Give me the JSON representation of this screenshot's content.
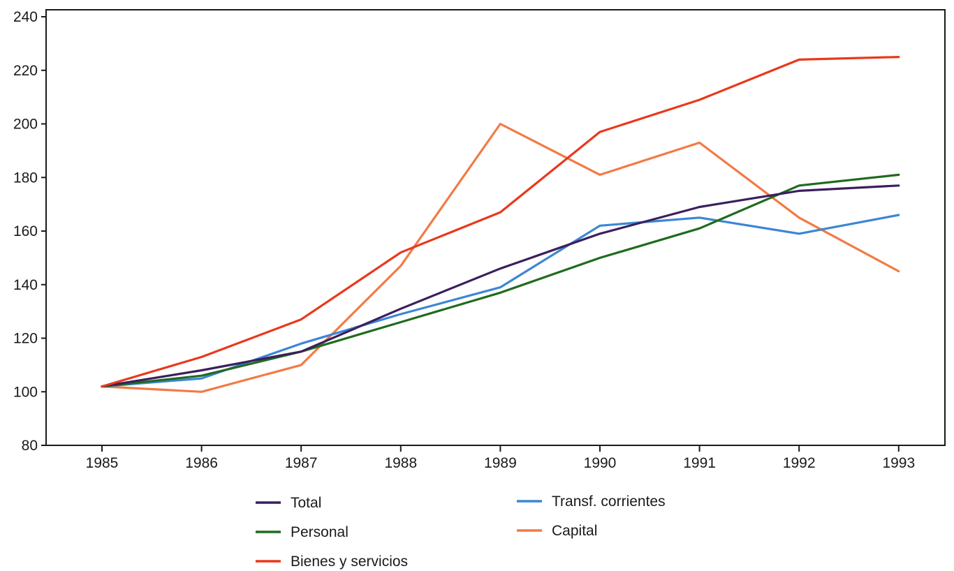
{
  "chart_data": {
    "type": "line",
    "title": "",
    "xlabel": "",
    "ylabel": "",
    "x": [
      "1985",
      "1986",
      "1987",
      "1988",
      "1989",
      "1990",
      "1991",
      "1992",
      "1993"
    ],
    "ylim": [
      80,
      240
    ],
    "yticks": [
      "80",
      "100",
      "120",
      "140",
      "160",
      "180",
      "200",
      "220",
      "240"
    ],
    "grid": false,
    "legend_position": "bottom",
    "series": [
      {
        "name": "Total",
        "color": "#3a1f5e",
        "values": [
          102,
          108,
          115,
          131,
          146,
          159,
          169,
          175,
          177
        ]
      },
      {
        "name": "Personal",
        "color": "#1f6b1f",
        "values": [
          102,
          106,
          115,
          126,
          137,
          150,
          161,
          177,
          181
        ]
      },
      {
        "name": "Bienes y servicios",
        "color": "#e8391c",
        "values": [
          102,
          113,
          127,
          152,
          167,
          197,
          209,
          224,
          225
        ]
      },
      {
        "name": "Transf. corrientes",
        "color": "#3b86d6",
        "values": [
          102,
          105,
          118,
          129,
          139,
          162,
          165,
          159,
          166
        ]
      },
      {
        "name": "Capital",
        "color": "#f37a45",
        "values": [
          102,
          100,
          110,
          147,
          200,
          181,
          193,
          165,
          145
        ]
      }
    ]
  }
}
